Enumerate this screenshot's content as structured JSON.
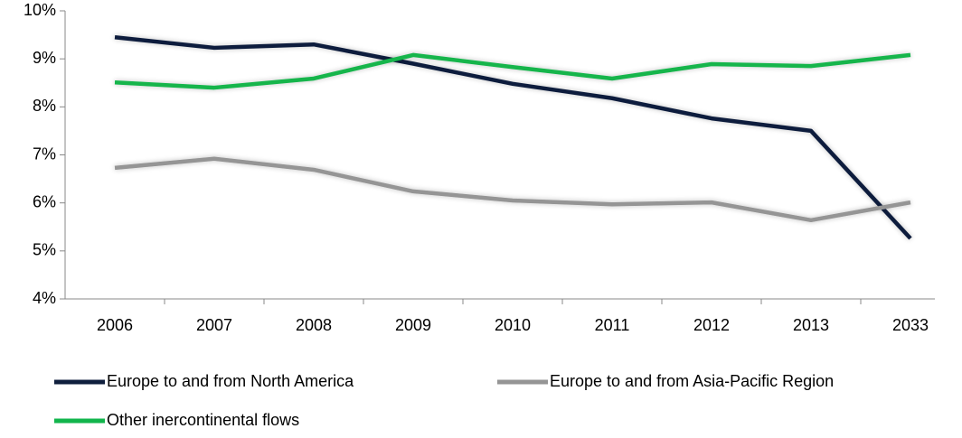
{
  "chart_data": {
    "type": "line",
    "categories": [
      "2006",
      "2007",
      "2008",
      "2009",
      "2010",
      "2011",
      "2012",
      "2013",
      "2033"
    ],
    "series": [
      {
        "name": "Europe to and from North America",
        "color": "#0f1f3d",
        "values": [
          9.45,
          9.23,
          9.3,
          8.9,
          8.48,
          8.18,
          7.76,
          7.5,
          5.26
        ]
      },
      {
        "name": "Europe to and from Asia-Pacific Region",
        "color": "#959595",
        "values": [
          6.73,
          6.92,
          6.69,
          6.24,
          6.05,
          5.97,
          6.01,
          5.64,
          6.01
        ]
      },
      {
        "name": "Other inercontinental flows",
        "color": "#12b54c",
        "values": [
          8.51,
          8.4,
          8.59,
          9.08,
          8.83,
          8.59,
          8.89,
          8.85,
          9.08
        ]
      }
    ],
    "ylim": [
      4,
      10
    ],
    "yticks": [
      {
        "value": 4,
        "label": "4%"
      },
      {
        "value": 5,
        "label": "5%"
      },
      {
        "value": 6,
        "label": "6%"
      },
      {
        "value": 7,
        "label": "7%"
      },
      {
        "value": 8,
        "label": "8%"
      },
      {
        "value": 9,
        "label": "9%"
      },
      {
        "value": 10,
        "label": "10%"
      }
    ],
    "grid": false
  }
}
